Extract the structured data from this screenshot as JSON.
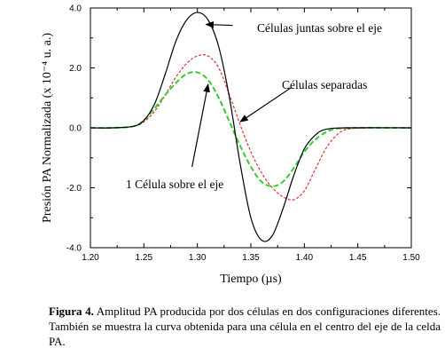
{
  "chart_data": {
    "type": "line",
    "xlabel": "Tiempo (µs)",
    "ylabel": "Presión PA Normalizada (x 10⁻⁴ u. a.)",
    "xlim": [
      1.2,
      1.5
    ],
    "ylim": [
      -4.0,
      4.0
    ],
    "x_ticks": [
      "1.20",
      "1.25",
      "1.30",
      "1.35",
      "1.40",
      "1.45",
      "1.50"
    ],
    "y_ticks": [
      "4.0",
      "2.0",
      "0.0",
      "-2.0",
      "-4.0"
    ],
    "grid": false,
    "series": [
      {
        "style": "solid",
        "color": "#000000",
        "points": [
          [
            1.2,
            0
          ],
          [
            1.22,
            0
          ],
          [
            1.24,
            0.05
          ],
          [
            1.25,
            0.25
          ],
          [
            1.26,
            0.8
          ],
          [
            1.27,
            1.8
          ],
          [
            1.28,
            2.9
          ],
          [
            1.29,
            3.6
          ],
          [
            1.3,
            3.85
          ],
          [
            1.31,
            3.6
          ],
          [
            1.32,
            2.7
          ],
          [
            1.33,
            1.0
          ],
          [
            1.34,
            -1.2
          ],
          [
            1.35,
            -3.0
          ],
          [
            1.36,
            -3.75
          ],
          [
            1.37,
            -3.6
          ],
          [
            1.38,
            -2.7
          ],
          [
            1.39,
            -1.6
          ],
          [
            1.4,
            -0.7
          ],
          [
            1.41,
            -0.25
          ],
          [
            1.42,
            -0.05
          ],
          [
            1.44,
            0
          ],
          [
            1.5,
            0
          ]
        ]
      },
      {
        "style": "dashed",
        "color": "#e03030",
        "points": [
          [
            1.2,
            0
          ],
          [
            1.22,
            0
          ],
          [
            1.24,
            0.05
          ],
          [
            1.25,
            0.2
          ],
          [
            1.26,
            0.55
          ],
          [
            1.27,
            1.1
          ],
          [
            1.28,
            1.7
          ],
          [
            1.29,
            2.15
          ],
          [
            1.3,
            2.4
          ],
          [
            1.31,
            2.4
          ],
          [
            1.32,
            2.0
          ],
          [
            1.33,
            1.1
          ],
          [
            1.34,
            0.1
          ],
          [
            1.35,
            -0.8
          ],
          [
            1.36,
            -1.5
          ],
          [
            1.37,
            -2.0
          ],
          [
            1.38,
            -2.3
          ],
          [
            1.39,
            -2.4
          ],
          [
            1.4,
            -2.1
          ],
          [
            1.41,
            -1.4
          ],
          [
            1.42,
            -0.7
          ],
          [
            1.43,
            -0.25
          ],
          [
            1.44,
            -0.05
          ],
          [
            1.46,
            0
          ],
          [
            1.5,
            0
          ]
        ]
      },
      {
        "style": "dashed",
        "color": "#33cc33",
        "points": [
          [
            1.2,
            0
          ],
          [
            1.22,
            0
          ],
          [
            1.24,
            0.05
          ],
          [
            1.25,
            0.25
          ],
          [
            1.26,
            0.65
          ],
          [
            1.27,
            1.1
          ],
          [
            1.28,
            1.5
          ],
          [
            1.29,
            1.8
          ],
          [
            1.3,
            1.85
          ],
          [
            1.31,
            1.6
          ],
          [
            1.32,
            1.0
          ],
          [
            1.33,
            0.2
          ],
          [
            1.34,
            -0.6
          ],
          [
            1.35,
            -1.3
          ],
          [
            1.36,
            -1.8
          ],
          [
            1.37,
            -1.95
          ],
          [
            1.38,
            -1.8
          ],
          [
            1.39,
            -1.35
          ],
          [
            1.4,
            -0.8
          ],
          [
            1.41,
            -0.4
          ],
          [
            1.42,
            -0.15
          ],
          [
            1.43,
            -0.03
          ],
          [
            1.45,
            0
          ],
          [
            1.5,
            0
          ]
        ]
      }
    ],
    "annotations": [
      {
        "text": "Células juntas sobre el eje",
        "arrow_from": [
          1.333,
          3.42
        ],
        "arrow_to": [
          1.308,
          3.45
        ]
      },
      {
        "text": "Células separadas",
        "arrow_from": [
          1.388,
          1.35
        ],
        "arrow_to": [
          1.34,
          0.2
        ]
      },
      {
        "text": "1 Célula sobre el eje",
        "arrow_from": [
          1.295,
          -1.3
        ],
        "arrow_to": [
          1.31,
          1.45
        ]
      }
    ]
  },
  "caption": {
    "label": "Figura 4.",
    "text": " Amplitud PA producida por dos células en dos configuraciones diferentes.  También se muestra la curva obtenida para una célula en el centro del eje de la celda PA."
  }
}
